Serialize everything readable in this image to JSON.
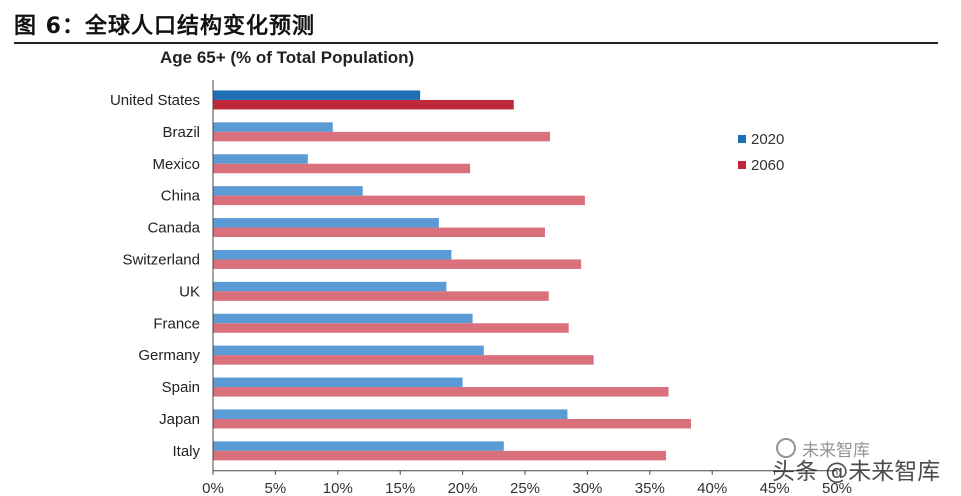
{
  "figure": {
    "title": "图 6：全球人口结构变化预测"
  },
  "chart_data": {
    "type": "bar",
    "orientation": "horizontal",
    "title": "Age 65+ (% of Total Population)",
    "categories": [
      "United States",
      "Brazil",
      "Mexico",
      "China",
      "Canada",
      "Switzerland",
      "UK",
      "France",
      "Germany",
      "Spain",
      "Japan",
      "Italy"
    ],
    "series": [
      {
        "name": "2020",
        "values": [
          16.6,
          9.6,
          7.6,
          12.0,
          18.1,
          19.1,
          18.7,
          20.8,
          21.7,
          20.0,
          28.4,
          23.3
        ],
        "color": "#5b9bd5",
        "highlight_color": "#1f6fb5"
      },
      {
        "name": "2060",
        "values": [
          24.1,
          27.0,
          20.6,
          29.8,
          26.6,
          29.5,
          26.9,
          28.5,
          30.5,
          36.5,
          38.3,
          36.3
        ],
        "color": "#d9707c",
        "highlight_color": "#c0283a"
      }
    ],
    "highlight_category": "United States",
    "x_ticks": [
      "0%",
      "5%",
      "10%",
      "15%",
      "20%",
      "25%",
      "30%",
      "35%",
      "40%",
      "45%",
      "50%"
    ],
    "xlim": [
      0,
      50
    ],
    "legend_position": "right",
    "grid": false
  },
  "watermark": {
    "line1": "未来智库",
    "line2": "头条 @未来智库"
  }
}
